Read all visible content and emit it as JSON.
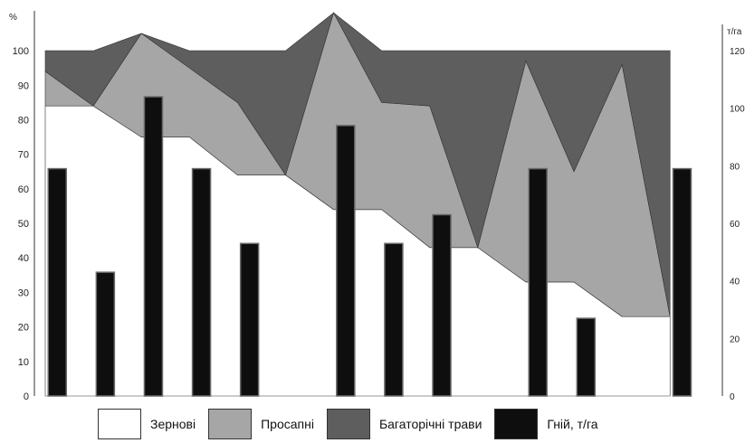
{
  "chart_data": {
    "type": "area+bar",
    "left_axis_label": "%",
    "right_axis_label": "т/га",
    "left_ticks": [
      "0",
      "10",
      "20",
      "30",
      "40",
      "50",
      "60",
      "70",
      "80",
      "90",
      "100"
    ],
    "right_ticks": [
      "0",
      "20",
      "40",
      "60",
      "80",
      "100",
      "120"
    ],
    "left_ylim": [
      0,
      105
    ],
    "right_ylim": [
      0,
      126
    ],
    "x": [
      0,
      1,
      2,
      3,
      4,
      5,
      6,
      7,
      8,
      9,
      10,
      11,
      12,
      13
    ],
    "xlim": [
      0,
      13.9
    ],
    "area_series": [
      {
        "name": "Зернові",
        "color": "#ffffff",
        "values": [
          84,
          84,
          75,
          75,
          64,
          64,
          54,
          54,
          43,
          43,
          33,
          33,
          23,
          23
        ]
      },
      {
        "name": "Просапні",
        "color": "#a6a6a6",
        "values": [
          10,
          0,
          30,
          20,
          21,
          0,
          57,
          31,
          41,
          0,
          64,
          32,
          73,
          0
        ]
      },
      {
        "name": "Багаторічні трави",
        "color": "#5e5e5e",
        "values": [
          6,
          16,
          0,
          5,
          15,
          36,
          0,
          15,
          16,
          57,
          3,
          35,
          4,
          77
        ]
      }
    ],
    "bar_series": {
      "name": "Гній, т/га",
      "color": "#0e0e0e",
      "x": [
        0.25,
        1.25,
        2.25,
        3.25,
        4.25,
        6.25,
        7.25,
        8.25,
        10.25,
        11.25,
        13.25
      ],
      "values": [
        79,
        43,
        104,
        79,
        53,
        94,
        53,
        63,
        79,
        27,
        79
      ]
    },
    "legend": [
      {
        "label": "Зернові",
        "color": "#ffffff"
      },
      {
        "label": "Просапні",
        "color": "#a6a6a6"
      },
      {
        "label": "Багаторічні трави",
        "color": "#5e5e5e"
      },
      {
        "label": "Гній, т/га",
        "color": "#0e0e0e"
      }
    ],
    "legend_position": "bottom",
    "grid": false
  }
}
